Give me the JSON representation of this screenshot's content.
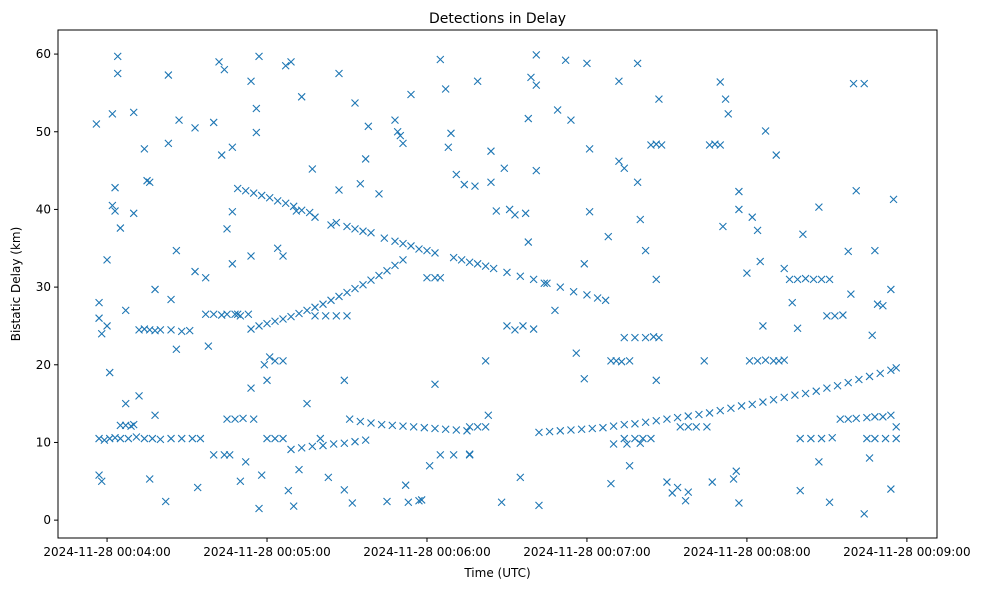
{
  "chart_data": {
    "type": "scatter",
    "title": "Detections in Delay",
    "xlabel": "Time (UTC)",
    "ylabel": "Bistatic Delay (km)",
    "x_unit": "seconds after 2024-11-28 00:04:00",
    "xlim": [
      -18.4,
      311.3
    ],
    "ylim": [
      -2.3,
      63.1
    ],
    "grid": false,
    "marker": "x",
    "color": "#1f77b4",
    "xticks": [
      {
        "value": 0,
        "label": "2024-11-28 00:04:00"
      },
      {
        "value": 60,
        "label": "2024-11-28 00:05:00"
      },
      {
        "value": 120,
        "label": "2024-11-28 00:06:00"
      },
      {
        "value": 180,
        "label": "2024-11-28 00:07:00"
      },
      {
        "value": 240,
        "label": "2024-11-28 00:08:00"
      },
      {
        "value": 300,
        "label": "2024-11-28 00:09:00"
      }
    ],
    "yticks": [
      {
        "value": 0,
        "label": "0"
      },
      {
        "value": 10,
        "label": "10"
      },
      {
        "value": 20,
        "label": "20"
      },
      {
        "value": 30,
        "label": "30"
      },
      {
        "value": 40,
        "label": "40"
      },
      {
        "value": 50,
        "label": "50"
      },
      {
        "value": 60,
        "label": "60"
      }
    ],
    "points": [
      [
        49,
        42.7
      ],
      [
        52,
        42.4
      ],
      [
        55,
        42.1
      ],
      [
        58,
        41.8
      ],
      [
        61,
        41.5
      ],
      [
        64,
        41.1
      ],
      [
        67,
        40.8
      ],
      [
        70,
        40.4
      ],
      [
        73,
        39.9
      ],
      [
        76,
        39.6
      ],
      [
        86,
        38.3
      ],
      [
        90,
        37.8
      ],
      [
        93,
        37.5
      ],
      [
        96,
        37.2
      ],
      [
        99,
        37
      ],
      [
        104,
        36.3
      ],
      [
        108,
        35.9
      ],
      [
        111,
        35.6
      ],
      [
        114,
        35.3
      ],
      [
        117,
        34.9
      ],
      [
        120,
        34.7
      ],
      [
        123,
        34.4
      ],
      [
        130,
        33.8
      ],
      [
        133,
        33.5
      ],
      [
        136,
        33.2
      ],
      [
        139,
        33
      ],
      [
        142,
        32.7
      ],
      [
        145,
        32.4
      ],
      [
        150,
        31.9
      ],
      [
        155,
        31.4
      ],
      [
        160,
        31
      ],
      [
        165,
        30.5
      ],
      [
        170,
        30
      ],
      [
        175,
        29.4
      ],
      [
        180,
        29
      ],
      [
        184,
        28.6
      ],
      [
        187,
        28.3
      ],
      [
        54,
        24.6
      ],
      [
        57,
        25
      ],
      [
        60,
        25.3
      ],
      [
        63,
        25.6
      ],
      [
        66,
        25.9
      ],
      [
        69,
        26.2
      ],
      [
        72,
        26.6
      ],
      [
        75,
        27
      ],
      [
        78,
        27.4
      ],
      [
        81,
        27.8
      ],
      [
        84,
        28.3
      ],
      [
        87,
        28.8
      ],
      [
        90,
        29.3
      ],
      [
        93,
        29.8
      ],
      [
        96,
        30.3
      ],
      [
        99,
        30.9
      ],
      [
        102,
        31.5
      ],
      [
        105,
        32.1
      ],
      [
        108,
        32.8
      ],
      [
        111,
        33.5
      ],
      [
        69,
        9.1
      ],
      [
        73,
        9.3
      ],
      [
        77,
        9.5
      ],
      [
        81,
        9.6
      ],
      [
        85,
        9.8
      ],
      [
        89,
        9.9
      ],
      [
        93,
        10.1
      ],
      [
        97,
        10.3
      ],
      [
        91,
        13
      ],
      [
        95,
        12.7
      ],
      [
        99,
        12.5
      ],
      [
        103,
        12.3
      ],
      [
        107,
        12.2
      ],
      [
        111,
        12.1
      ],
      [
        115,
        12
      ],
      [
        119,
        11.9
      ],
      [
        123,
        11.8
      ],
      [
        127,
        11.7
      ],
      [
        131,
        11.6
      ],
      [
        135,
        11.5
      ],
      [
        162,
        11.3
      ],
      [
        166,
        11.4
      ],
      [
        170,
        11.5
      ],
      [
        174,
        11.6
      ],
      [
        178,
        11.7
      ],
      [
        182,
        11.8
      ],
      [
        186,
        11.9
      ],
      [
        190,
        12.1
      ],
      [
        194,
        12.3
      ],
      [
        198,
        12.4
      ],
      [
        202,
        12.6
      ],
      [
        206,
        12.8
      ],
      [
        210,
        13
      ],
      [
        214,
        13.2
      ],
      [
        218,
        13.4
      ],
      [
        222,
        13.6
      ],
      [
        226,
        13.8
      ],
      [
        230,
        14.1
      ],
      [
        234,
        14.4
      ],
      [
        238,
        14.7
      ],
      [
        242,
        14.9
      ],
      [
        246,
        15.2
      ],
      [
        250,
        15.5
      ],
      [
        254,
        15.8
      ],
      [
        258,
        16.1
      ],
      [
        262,
        16.3
      ],
      [
        266,
        16.6
      ],
      [
        270,
        17
      ],
      [
        274,
        17.3
      ],
      [
        278,
        17.7
      ],
      [
        282,
        18.1
      ],
      [
        286,
        18.5
      ],
      [
        290,
        18.9
      ],
      [
        294,
        19.3
      ],
      [
        296,
        19.6
      ],
      [
        -3,
        10.5
      ],
      [
        -1,
        10.3
      ],
      [
        1,
        10.5
      ],
      [
        3,
        10.6
      ],
      [
        5,
        10.5
      ],
      [
        8,
        10.5
      ],
      [
        11,
        10.7
      ],
      [
        14,
        10.5
      ],
      [
        17,
        10.5
      ],
      [
        20,
        10.4
      ],
      [
        24,
        10.5
      ],
      [
        28,
        10.5
      ],
      [
        32,
        10.5
      ],
      [
        35,
        10.5
      ],
      [
        5,
        12.2
      ],
      [
        7,
        12.2
      ],
      [
        9,
        12.1
      ],
      [
        10,
        12.3
      ],
      [
        12,
        24.5
      ],
      [
        14,
        24.6
      ],
      [
        16,
        24.5
      ],
      [
        18,
        24.4
      ],
      [
        20,
        24.5
      ],
      [
        24,
        24.5
      ],
      [
        28,
        24.3
      ],
      [
        31,
        24.4
      ],
      [
        37,
        26.5
      ],
      [
        40,
        26.5
      ],
      [
        43,
        26.4
      ],
      [
        45,
        26.5
      ],
      [
        48,
        26.5
      ],
      [
        50,
        26.3
      ],
      [
        53,
        26.5
      ],
      [
        40,
        8.4
      ],
      [
        44,
        8.4
      ],
      [
        46,
        8.4
      ],
      [
        45,
        13
      ],
      [
        48,
        13
      ],
      [
        51,
        13.1
      ],
      [
        55,
        13
      ],
      [
        60,
        10.5
      ],
      [
        63,
        10.5
      ],
      [
        66,
        10.5
      ],
      [
        80,
        10.5
      ],
      [
        63,
        20.5
      ],
      [
        66,
        20.5
      ],
      [
        78,
        26.3
      ],
      [
        82,
        26.3
      ],
      [
        86,
        26.3
      ],
      [
        90,
        26.3
      ],
      [
        120,
        31.2
      ],
      [
        123,
        31.2
      ],
      [
        125,
        31.2
      ],
      [
        150,
        25
      ],
      [
        153,
        24.5
      ],
      [
        156,
        25
      ],
      [
        160,
        24.6
      ],
      [
        125,
        8.4
      ],
      [
        130,
        8.4
      ],
      [
        136,
        8.4
      ],
      [
        136,
        12
      ],
      [
        139,
        12
      ],
      [
        142,
        12
      ],
      [
        189,
        20.5
      ],
      [
        191,
        20.5
      ],
      [
        193,
        20.4
      ],
      [
        196,
        20.5
      ],
      [
        194,
        23.5
      ],
      [
        198,
        23.5
      ],
      [
        202,
        23.5
      ],
      [
        205,
        23.6
      ],
      [
        207,
        23.5
      ],
      [
        204,
        48.3
      ],
      [
        206,
        48.4
      ],
      [
        208,
        48.3
      ],
      [
        226,
        48.3
      ],
      [
        228,
        48.4
      ],
      [
        230,
        48.3
      ],
      [
        194,
        10.5
      ],
      [
        198,
        10.5
      ],
      [
        201,
        10.5
      ],
      [
        204,
        10.5
      ],
      [
        190,
        9.8
      ],
      [
        195,
        9.8
      ],
      [
        200,
        9.9
      ],
      [
        215,
        12
      ],
      [
        218,
        12
      ],
      [
        221,
        12
      ],
      [
        225,
        12
      ],
      [
        241,
        20.5
      ],
      [
        244,
        20.5
      ],
      [
        247,
        20.6
      ],
      [
        250,
        20.5
      ],
      [
        252,
        20.5
      ],
      [
        254,
        20.6
      ],
      [
        270,
        26.3
      ],
      [
        273,
        26.3
      ],
      [
        276,
        26.4
      ],
      [
        256,
        31
      ],
      [
        259,
        31
      ],
      [
        262,
        31.1
      ],
      [
        265,
        31
      ],
      [
        268,
        31
      ],
      [
        271,
        31
      ],
      [
        260,
        10.5
      ],
      [
        264,
        10.5
      ],
      [
        268,
        10.5
      ],
      [
        272,
        10.6
      ],
      [
        275,
        13
      ],
      [
        278,
        13
      ],
      [
        281,
        13.1
      ],
      [
        285,
        13.2
      ],
      [
        285,
        10.5
      ],
      [
        288,
        10.5
      ],
      [
        292,
        10.5
      ],
      [
        296,
        10.5
      ],
      [
        288,
        13.3
      ],
      [
        291,
        13.3
      ],
      [
        294,
        13.5
      ],
      [
        296,
        12
      ],
      [
        -4,
        51
      ],
      [
        -3,
        28
      ],
      [
        -3,
        26
      ],
      [
        -2,
        24
      ],
      [
        -3,
        5.8
      ],
      [
        -2,
        5
      ],
      [
        0,
        25
      ],
      [
        1,
        19
      ],
      [
        0,
        33.5
      ],
      [
        2,
        40.5
      ],
      [
        3,
        42.8
      ],
      [
        3,
        39.8
      ],
      [
        4,
        57.5
      ],
      [
        4,
        59.7
      ],
      [
        2,
        52.3
      ],
      [
        5,
        37.6
      ],
      [
        7,
        27
      ],
      [
        7,
        15
      ],
      [
        10,
        52.5
      ],
      [
        10,
        39.5
      ],
      [
        14,
        47.8
      ],
      [
        15,
        43.7
      ],
      [
        16,
        43.5
      ],
      [
        12,
        16
      ],
      [
        16,
        5.3
      ],
      [
        18,
        29.7
      ],
      [
        18,
        13.5
      ],
      [
        23,
        57.3
      ],
      [
        23,
        48.5
      ],
      [
        22,
        2.4
      ],
      [
        24,
        28.4
      ],
      [
        26,
        22
      ],
      [
        26,
        34.7
      ],
      [
        27,
        51.5
      ],
      [
        33,
        50.5
      ],
      [
        33,
        32
      ],
      [
        34,
        4.2
      ],
      [
        37,
        31.2
      ],
      [
        38,
        22.4
      ],
      [
        40,
        51.2
      ],
      [
        42,
        59
      ],
      [
        43,
        47
      ],
      [
        44,
        58
      ],
      [
        45,
        37.5
      ],
      [
        47,
        48
      ],
      [
        47,
        33
      ],
      [
        47,
        39.7
      ],
      [
        49,
        26.5
      ],
      [
        50,
        5
      ],
      [
        52,
        7.5
      ],
      [
        54,
        17
      ],
      [
        54,
        34
      ],
      [
        54,
        56.5
      ],
      [
        56,
        49.9
      ],
      [
        56,
        53
      ],
      [
        57,
        1.5
      ],
      [
        57,
        59.7
      ],
      [
        58,
        5.8
      ],
      [
        59,
        20
      ],
      [
        60,
        18
      ],
      [
        61,
        21
      ],
      [
        64,
        35
      ],
      [
        66,
        34
      ],
      [
        67,
        58.5
      ],
      [
        69,
        59
      ],
      [
        68,
        3.8
      ],
      [
        70,
        1.8
      ],
      [
        71,
        39.8
      ],
      [
        72,
        6.5
      ],
      [
        73,
        54.5
      ],
      [
        75,
        15
      ],
      [
        77,
        45.2
      ],
      [
        78,
        39
      ],
      [
        83,
        5.5
      ],
      [
        84,
        38
      ],
      [
        87,
        42.5
      ],
      [
        87,
        57.5
      ],
      [
        89,
        18
      ],
      [
        89,
        3.9
      ],
      [
        92,
        2.2
      ],
      [
        93,
        53.7
      ],
      [
        95,
        43.3
      ],
      [
        97,
        46.5
      ],
      [
        98,
        50.7
      ],
      [
        102,
        42
      ],
      [
        105,
        2.4
      ],
      [
        108,
        51.5
      ],
      [
        109,
        50
      ],
      [
        110,
        49.5
      ],
      [
        111,
        48.5
      ],
      [
        112,
        4.5
      ],
      [
        113,
        2.3
      ],
      [
        114,
        54.8
      ],
      [
        117,
        2.5
      ],
      [
        118,
        2.6
      ],
      [
        121,
        7
      ],
      [
        123,
        17.5
      ],
      [
        125,
        59.3
      ],
      [
        127,
        55.5
      ],
      [
        128,
        48
      ],
      [
        129,
        49.8
      ],
      [
        131,
        44.5
      ],
      [
        134,
        43.2
      ],
      [
        136,
        8.5
      ],
      [
        138,
        43
      ],
      [
        139,
        56.5
      ],
      [
        142,
        20.5
      ],
      [
        143,
        13.5
      ],
      [
        144,
        47.5
      ],
      [
        144,
        43.5
      ],
      [
        146,
        39.8
      ],
      [
        148,
        2.3
      ],
      [
        149,
        45.3
      ],
      [
        151,
        40
      ],
      [
        153,
        39.3
      ],
      [
        155,
        5.5
      ],
      [
        157,
        39.5
      ],
      [
        158,
        35.8
      ],
      [
        158,
        51.7
      ],
      [
        159,
        57
      ],
      [
        161,
        56
      ],
      [
        161,
        45
      ],
      [
        161,
        59.9
      ],
      [
        162,
        1.9
      ],
      [
        164,
        30.5
      ],
      [
        168,
        27
      ],
      [
        169,
        52.8
      ],
      [
        172,
        59.2
      ],
      [
        174,
        51.5
      ],
      [
        176,
        21.5
      ],
      [
        179,
        18.2
      ],
      [
        179,
        33
      ],
      [
        180,
        58.8
      ],
      [
        181,
        39.7
      ],
      [
        181,
        47.8
      ],
      [
        188,
        36.5
      ],
      [
        189,
        4.7
      ],
      [
        192,
        46.2
      ],
      [
        192,
        56.5
      ],
      [
        194,
        45.3
      ],
      [
        196,
        7
      ],
      [
        199,
        58.8
      ],
      [
        199,
        43.5
      ],
      [
        200,
        38.7
      ],
      [
        202,
        34.7
      ],
      [
        206,
        31
      ],
      [
        206,
        18
      ],
      [
        207,
        54.2
      ],
      [
        210,
        4.9
      ],
      [
        212,
        3.5
      ],
      [
        214,
        4.2
      ],
      [
        217,
        2.5
      ],
      [
        218,
        3.6
      ],
      [
        224,
        20.5
      ],
      [
        227,
        4.9
      ],
      [
        230,
        56.4
      ],
      [
        231,
        37.8
      ],
      [
        232,
        54.2
      ],
      [
        233,
        52.3
      ],
      [
        235,
        5.3
      ],
      [
        236,
        6.3
      ],
      [
        237,
        40
      ],
      [
        237,
        42.3
      ],
      [
        237,
        2.2
      ],
      [
        240,
        31.8
      ],
      [
        242,
        39
      ],
      [
        244,
        37.3
      ],
      [
        245,
        33.3
      ],
      [
        246,
        25
      ],
      [
        247,
        50.1
      ],
      [
        251,
        47
      ],
      [
        254,
        32.4
      ],
      [
        257,
        28
      ],
      [
        259,
        24.7
      ],
      [
        260,
        3.8
      ],
      [
        261,
        36.8
      ],
      [
        267,
        7.5
      ],
      [
        267,
        40.3
      ],
      [
        271,
        2.3
      ],
      [
        278,
        34.6
      ],
      [
        279,
        29.1
      ],
      [
        280,
        56.2
      ],
      [
        281,
        42.4
      ],
      [
        284,
        56.2
      ],
      [
        284,
        0.8
      ],
      [
        286,
        8
      ],
      [
        287,
        23.8
      ],
      [
        288,
        34.7
      ],
      [
        289,
        27.8
      ],
      [
        291,
        27.6
      ],
      [
        294,
        29.7
      ],
      [
        294,
        4
      ],
      [
        295,
        41.3
      ]
    ]
  }
}
